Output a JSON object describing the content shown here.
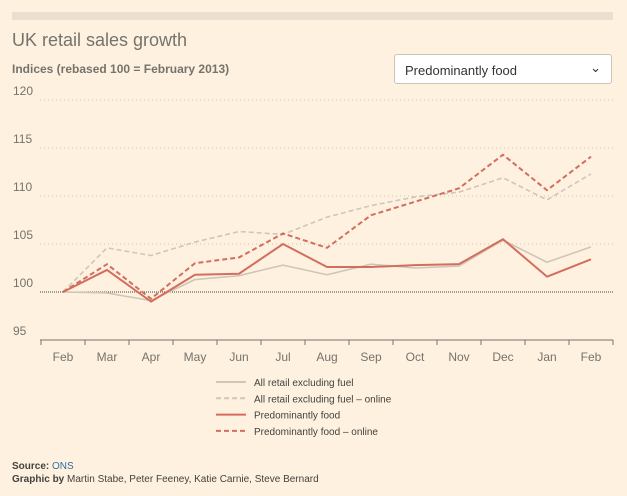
{
  "title": "UK retail sales growth",
  "subtitle": "Indices (rebased 100 = February 2013)",
  "dropdown": {
    "selected": "Predominantly food",
    "icon": "chevron-down-icon"
  },
  "footer": {
    "source_label": "Source:",
    "source_value": "ONS",
    "graphic_label": "Graphic by",
    "graphic_value": "Martin Stabe, Peter Feeney, Katie Carnie, Steve Bernard"
  },
  "colors": {
    "background": "#fff1e0",
    "series_grey": "#cec6b9",
    "series_red": "#d36e5e",
    "link": "#2e6e9e"
  },
  "chart_data": {
    "type": "line",
    "title": "UK retail sales growth",
    "subtitle": "Indices (rebased 100 = February 2013)",
    "categories": [
      "Feb",
      "Mar",
      "Apr",
      "May",
      "Jun",
      "Jul",
      "Aug",
      "Sep",
      "Oct",
      "Nov",
      "Dec",
      "Jan",
      "Feb"
    ],
    "ylim": [
      95,
      120
    ],
    "yticks": [
      "95",
      "100",
      "105",
      "110",
      "115",
      "120"
    ],
    "baseline": 100,
    "grid": "dotted horizontal",
    "legend_position": "bottom",
    "series": [
      {
        "name": "All retail excluding fuel",
        "color": "#cec6b9",
        "dash": "solid",
        "values": [
          100,
          99.9,
          99.1,
          101.3,
          101.7,
          102.8,
          101.8,
          102.9,
          102.5,
          102.7,
          105.4,
          103.1,
          104.7
        ]
      },
      {
        "name": "All retail excluding fuel – online",
        "color": "#cec6b9",
        "dash": "dashed",
        "values": [
          100,
          104.6,
          103.8,
          105.2,
          106.3,
          106,
          107.8,
          109,
          109.9,
          110.4,
          111.9,
          109.6,
          112.3
        ]
      },
      {
        "name": "Predominantly food",
        "color": "#d36e5e",
        "dash": "solid",
        "values": [
          100,
          102.3,
          99,
          101.8,
          101.9,
          105,
          102.6,
          102.6,
          102.8,
          102.9,
          105.5,
          101.6,
          103.4
        ]
      },
      {
        "name": "Predominantly food – online",
        "color": "#d36e5e",
        "dash": "dashed",
        "values": [
          100,
          102.9,
          99.3,
          103,
          103.6,
          106.1,
          104.6,
          108,
          109.4,
          110.8,
          114.3,
          110.6,
          114.1
        ]
      }
    ]
  }
}
